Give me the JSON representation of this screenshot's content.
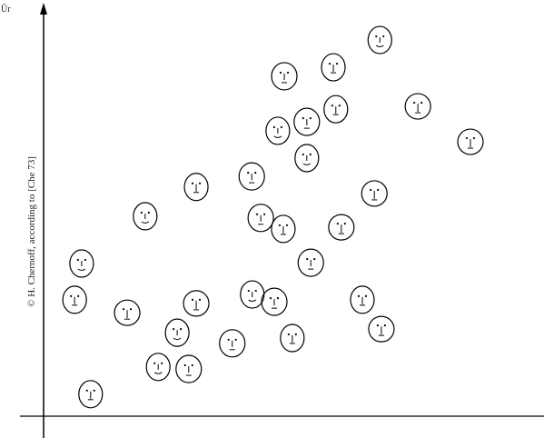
{
  "chart_data": {
    "type": "scatter",
    "corner_text": "Ūr",
    "credit": "© H. Chernoff, according to [Che 73]",
    "x": [
      67.2,
      48.1,
      57.9,
      74.8,
      46.8,
      52.6,
      58.4,
      85.3,
      52.6,
      41.6,
      30.5,
      66.1,
      20.3,
      43.4,
      47.9,
      59.5,
      7.6,
      53.4,
      6.2,
      30.5,
      41.7,
      46.1,
      63.7,
      16.7,
      26.7,
      37.7,
      49.7,
      67.5,
      22.9,
      29.0,
      9.4
    ],
    "values": [
      92.4,
      83.5,
      85.7,
      76.1,
      70.1,
      72.3,
      75.4,
      67.4,
      63.4,
      58.9,
      56.3,
      54.7,
      49.1,
      48.7,
      46.0,
      46.4,
      37.5,
      37.7,
      28.6,
      27.7,
      29.9,
      28.1,
      28.6,
      25.4,
      20.5,
      17.9,
      19.2,
      21.4,
      12.1,
      11.6,
      5.4
    ],
    "xlim": [
      0,
      100
    ],
    "ylim": [
      0,
      100
    ],
    "color": "#000000"
  }
}
